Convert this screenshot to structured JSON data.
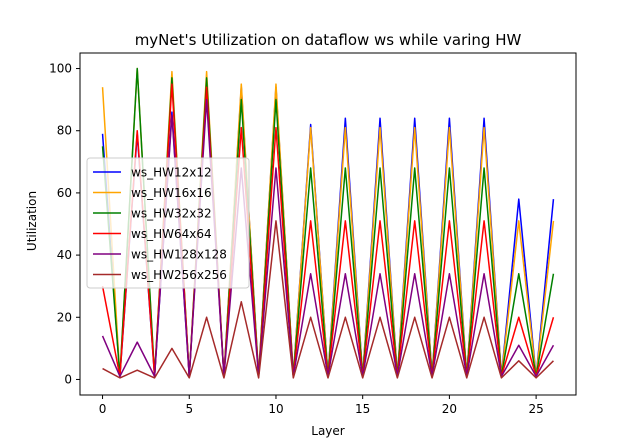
{
  "chart_data": {
    "type": "line",
    "title": "myNet's Utilization on dataflow ws while varing HW",
    "xlabel": "Layer",
    "ylabel": "Utilization",
    "xlim": [
      -1.3,
      27.3
    ],
    "ylim": [
      -5,
      105
    ],
    "xticks": [
      0,
      5,
      10,
      15,
      20,
      25
    ],
    "yticks": [
      0,
      20,
      40,
      60,
      80,
      100
    ],
    "grid": false,
    "legend_position": "center-left",
    "x": [
      0,
      1,
      2,
      3,
      4,
      5,
      6,
      7,
      8,
      9,
      10,
      11,
      12,
      13,
      14,
      15,
      16,
      17,
      18,
      19,
      20,
      21,
      22,
      23,
      24,
      25,
      26
    ],
    "series": [
      {
        "name": "ws_HW12x12",
        "color": "#0000ff",
        "values": [
          79,
          1,
          79,
          1,
          86,
          1,
          94,
          1,
          94,
          1,
          94,
          1,
          82,
          1,
          84,
          1,
          84,
          1,
          84,
          1,
          84,
          1,
          84,
          1,
          58,
          1,
          58
        ]
      },
      {
        "name": "ws_HW16x16",
        "color": "#ffa500",
        "values": [
          94,
          1,
          100,
          1,
          99,
          1,
          99,
          1,
          95,
          1,
          95,
          1,
          81,
          1,
          81,
          1,
          81,
          1,
          81,
          1,
          81,
          1,
          81,
          1,
          51,
          1,
          51
        ]
      },
      {
        "name": "ws_HW32x32",
        "color": "#008000",
        "values": [
          75,
          1,
          100,
          1,
          97,
          1,
          97,
          1,
          90,
          1,
          90,
          1,
          68,
          1,
          68,
          1,
          68,
          1,
          68,
          1,
          68,
          1,
          68,
          1,
          34,
          1,
          34
        ]
      },
      {
        "name": "ws_HW64x64",
        "color": "#ff0000",
        "values": [
          30,
          1,
          80,
          1,
          95,
          1,
          94,
          1,
          81,
          1,
          81,
          1,
          51,
          1,
          51,
          1,
          51,
          1,
          51,
          1,
          51,
          1,
          51,
          1,
          20,
          1,
          20
        ]
      },
      {
        "name": "ws_HW128x128",
        "color": "#800080",
        "values": [
          14,
          1,
          12,
          1,
          85,
          1,
          90,
          1,
          68,
          1,
          68,
          1,
          34,
          1,
          34,
          1,
          34,
          1,
          34,
          1,
          34,
          1,
          34,
          1,
          11,
          1,
          11
        ]
      },
      {
        "name": "ws_HW256x256",
        "color": "#a52a2a",
        "values": [
          3.5,
          0.5,
          3,
          0.5,
          10,
          0.5,
          20,
          0.5,
          25,
          0.5,
          51,
          0.5,
          20,
          0.5,
          20,
          0.5,
          20,
          0.5,
          20,
          0.5,
          20,
          0.5,
          20,
          0.5,
          6,
          0.5,
          6
        ]
      }
    ]
  }
}
